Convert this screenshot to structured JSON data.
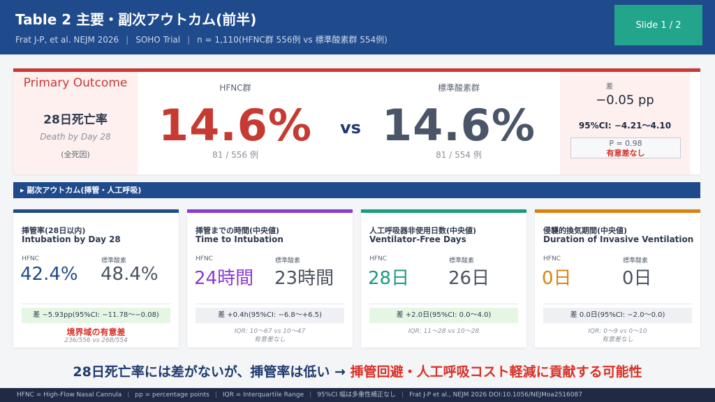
{
  "header": {
    "title": "Table 2  主要・副次アウトカム(前半)",
    "subtitle_parts": [
      "Frat J-P, et al. NEJM 2026",
      "SOHO Trial",
      "n = 1,110(HFNC群 556例 vs 標準酸素群 554例)"
    ],
    "separator": "|",
    "slide_label": "Slide 1 / 2",
    "colors": {
      "background": "#1f4a8c",
      "badge": "#22a58a"
    }
  },
  "primary": {
    "label": "Primary Outcome",
    "name": "28日死亡率",
    "name_en": "Death by Day 28",
    "note": "(全死因)",
    "hfnc": {
      "label": "HFNC群",
      "value": "14.6%",
      "count": "81 / 556 例",
      "color": "#c63a32"
    },
    "vs": "vs",
    "standard": {
      "label": "標準酸素群",
      "value": "14.6%",
      "count": "81 / 554 例",
      "color": "#4a5568"
    },
    "difference": {
      "label": "差",
      "value": "−0.05 pp",
      "ci": "95%CI: −4.21〜4.10",
      "p": "P = 0.98",
      "significance": "有意差なし"
    }
  },
  "section": {
    "title": "▸ 副次アウトカム(挿管・人工呼吸)"
  },
  "secondary": [
    {
      "title": "挿管率(28日以内)",
      "title_en": "Intubation by Day 28",
      "accent": "#1f4a8c",
      "hfnc_label": "HFNC",
      "hfnc_value": "42.4%",
      "std_label": "標準酸素",
      "std_value": "48.4%",
      "diff": "差 −5.93pp(95%CI: −11.78〜−0.08)",
      "diff_significant": true,
      "note_strong": "境界域の有意差",
      "note": "236/556 vs 268/554",
      "note2": ""
    },
    {
      "title": "挿管までの時間(中央値)",
      "title_en": "Time to Intubation",
      "accent": "#8a3ad6",
      "hfnc_label": "HFNC",
      "hfnc_value": "24時間",
      "std_label": "標準酸素",
      "std_value": "23時間",
      "diff": "差 +0.4h(95%CI: −6.8〜+6.5)",
      "diff_significant": false,
      "note_strong": "",
      "note": "IQR: 10〜67 vs 10〜47",
      "note2": "有意差なし"
    },
    {
      "title": "人工呼吸器非使用日数(中央値)",
      "title_en": "Ventilator-Free Days",
      "accent": "#1a9a80",
      "hfnc_label": "HFNC",
      "hfnc_value": "28日",
      "std_label": "標準酸素",
      "std_value": "26日",
      "diff": "差 +2.0日(95%CI: 0.0〜4.0)",
      "diff_significant": true,
      "note_strong": "",
      "note": "IQR: 11〜28 vs 10〜28",
      "note2": ""
    },
    {
      "title": "侵襲的換気期間(中央値)",
      "title_en": "Duration of Invasive Ventilation",
      "accent": "#d9830f",
      "hfnc_label": "HFNC",
      "hfnc_value": "0日",
      "std_label": "標準酸素",
      "std_value": "0日",
      "diff": "差 0.0日(95%CI: −2.0〜0.0)",
      "diff_significant": false,
      "note_strong": "",
      "note": "IQR: 0〜9 vs 0〜10",
      "note2": "有意差なし"
    }
  ],
  "conclusion": {
    "text": "28日死亡率には差がないが、挿管率は低い → ",
    "highlight": "挿管回避・人工呼吸コスト軽減に貢献する可能性"
  },
  "footer": {
    "parts": [
      "HFNC = High-Flow Nasal Cannula",
      "pp = percentage points",
      "IQR = Interquartile Range",
      "95%CI 幅は多重性補正なし",
      "Frat J-P et al., NEJM 2026  DOI:10.1056/NEJMoa2516087"
    ],
    "separator": "|"
  }
}
